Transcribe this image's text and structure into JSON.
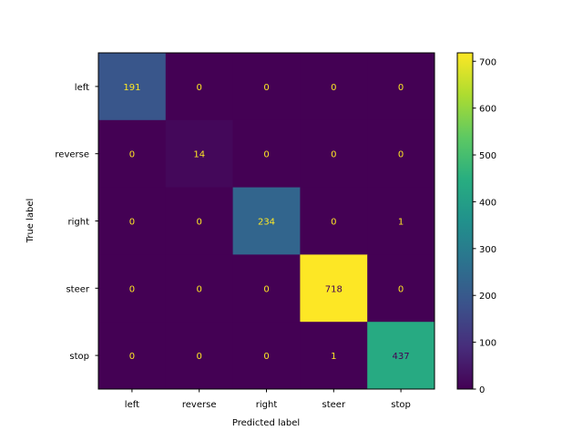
{
  "chart_data": {
    "type": "heatmap",
    "title": "",
    "xlabel": "Predicted label",
    "ylabel": "True label",
    "x_categories": [
      "left",
      "reverse",
      "right",
      "steer",
      "stop"
    ],
    "y_categories": [
      "left",
      "reverse",
      "right",
      "steer",
      "stop"
    ],
    "values": [
      [
        191,
        0,
        0,
        0,
        0
      ],
      [
        0,
        14,
        0,
        0,
        0
      ],
      [
        0,
        0,
        234,
        0,
        1
      ],
      [
        0,
        0,
        0,
        718,
        0
      ],
      [
        0,
        0,
        0,
        1,
        437
      ]
    ],
    "colormap": "viridis",
    "color_range": [
      0,
      718
    ],
    "colorbar_ticks": [
      0,
      100,
      200,
      300,
      400,
      500,
      600,
      700
    ],
    "text_colors": {
      "dark_cell": "#fde725",
      "bright_cell": "#440154"
    }
  }
}
